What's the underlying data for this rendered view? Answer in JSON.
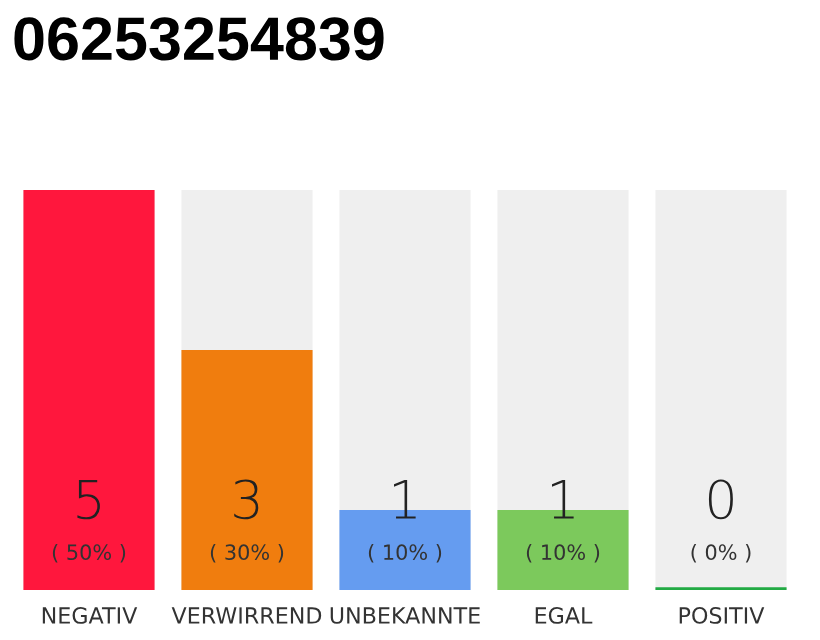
{
  "chart_data": {
    "type": "bar",
    "title": "06253254839",
    "categories": [
      "NEGATIV",
      "VERWIRREND",
      "UNBEKANNTE",
      "EGAL",
      "POSITIV"
    ],
    "values": [
      5,
      3,
      1,
      1,
      0
    ],
    "colors": [
      "#ff173d",
      "#f07d0e",
      "#659cf0",
      "#7cc95c",
      "#22aa44"
    ],
    "ylim": [
      0,
      5
    ],
    "data_labels": true,
    "annotations": [
      "( 50% )",
      "( 30% )",
      "( 10% )",
      "( 10% )",
      "( 0% )"
    ],
    "tick_labels": "x",
    "grid": false
  }
}
